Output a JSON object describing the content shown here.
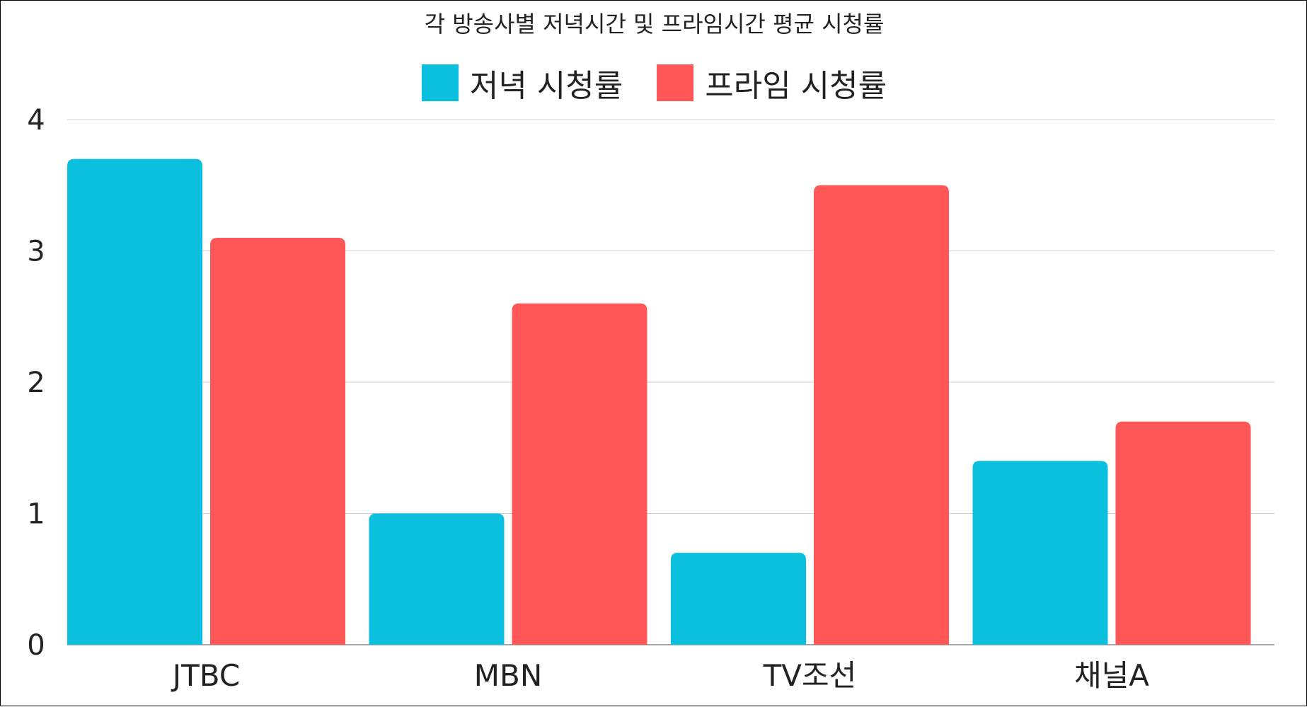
{
  "chart_data": {
    "type": "bar",
    "title": "각 방송사별 저녁시간 및 프라임시간 평균 시청률",
    "categories": [
      "JTBC",
      "MBN",
      "TV조선",
      "채널A"
    ],
    "series": [
      {
        "name": "저녁 시청률",
        "color": "#0BBFDF",
        "values": [
          3.7,
          1.0,
          0.7,
          1.4
        ]
      },
      {
        "name": "프라임 시청률",
        "color": "#FF5757",
        "values": [
          3.1,
          2.6,
          3.5,
          1.7
        ]
      }
    ],
    "ylim": [
      0,
      4
    ],
    "yticks": [
      "0",
      "1",
      "2",
      "3",
      "4"
    ],
    "xlabel": "",
    "ylabel": "",
    "grid": true,
    "legend_position": "top-center"
  }
}
